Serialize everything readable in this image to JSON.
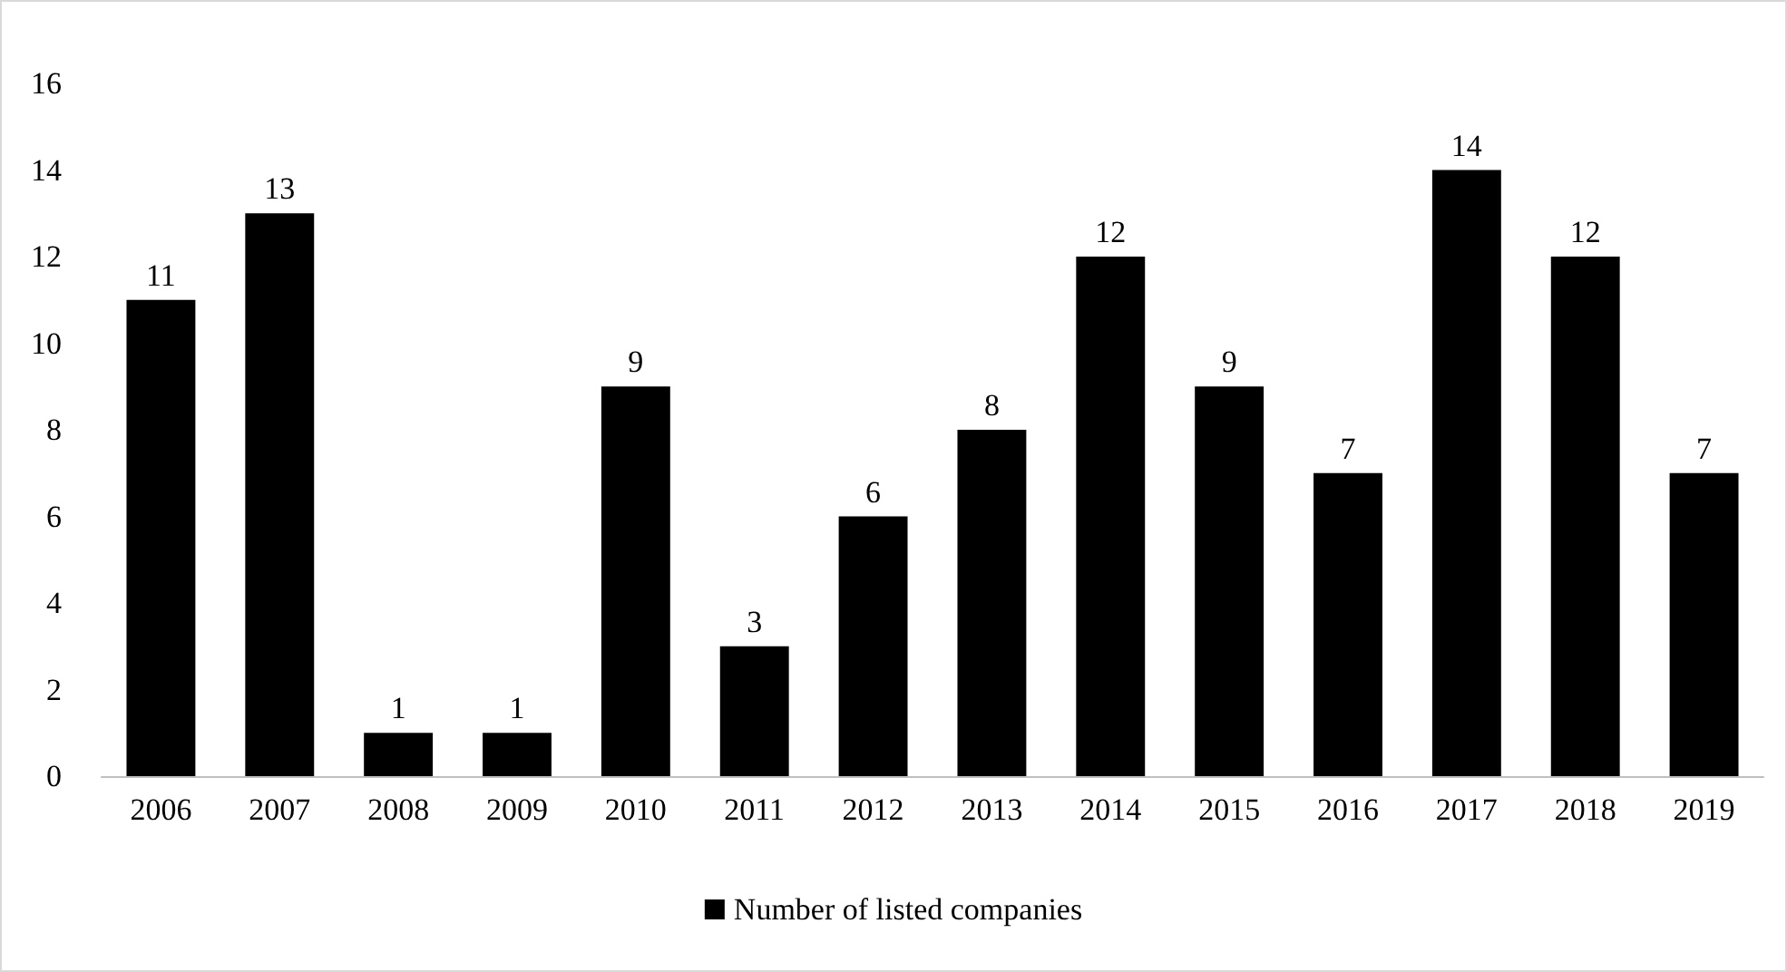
{
  "chart_data": {
    "type": "bar",
    "categories": [
      "2006",
      "2007",
      "2008",
      "2009",
      "2010",
      "2011",
      "2012",
      "2013",
      "2014",
      "2015",
      "2016",
      "2017",
      "2018",
      "2019"
    ],
    "series": [
      {
        "name": "Number of listed companies",
        "color": "#000000",
        "values": [
          11,
          13,
          1,
          1,
          9,
          3,
          6,
          8,
          12,
          9,
          7,
          14,
          12,
          7
        ]
      }
    ],
    "ylim": [
      0,
      16
    ],
    "yticks": [
      0,
      2,
      4,
      6,
      8,
      10,
      12,
      14,
      16
    ],
    "data_labels": true,
    "legend": "bottom",
    "grid": false
  }
}
